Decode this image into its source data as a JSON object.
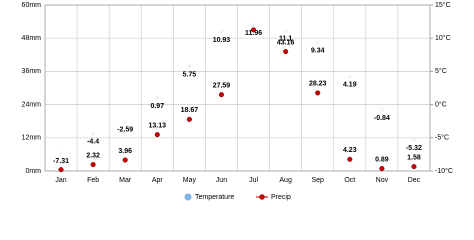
{
  "chart_data": {
    "type": "climate",
    "categories": [
      "Jan",
      "Feb",
      "Mar",
      "Apr",
      "May",
      "Jun",
      "Jul",
      "Aug",
      "Sep",
      "Oct",
      "Nov",
      "Dec"
    ],
    "series": [
      {
        "name": "Temperature",
        "color": "#7fb6e8",
        "axis": "y2",
        "values": [
          -7.31,
          -4.4,
          -2.59,
          0.97,
          5.75,
          10.93,
          11.96,
          11.1,
          9.34,
          4.19,
          -0.84,
          -5.32
        ]
      },
      {
        "name": "Precip",
        "color": "#cc0000",
        "values": [
          0.5,
          2.32,
          3.96,
          13.13,
          18.67,
          27.59,
          51,
          43.16,
          28.23,
          4.23,
          0.89,
          1.58
        ],
        "value_labels": [
          null,
          "2.32",
          "3.96",
          "13.13",
          "18.67",
          "27.59",
          null,
          "43.16",
          "28.23",
          "4.23",
          "0.89",
          "1.58"
        ]
      }
    ],
    "ylim": [
      0,
      60
    ],
    "yticks": [
      {
        "value": 0,
        "label": "0mm"
      },
      {
        "value": 12,
        "label": "12mm"
      },
      {
        "value": 24,
        "label": "24mm"
      },
      {
        "value": 36,
        "label": "36mm"
      },
      {
        "value": 48,
        "label": "48mm"
      },
      {
        "value": 60,
        "label": "60mm"
      }
    ],
    "y2lim": [
      -10,
      15
    ],
    "y2ticks": [
      {
        "value": -10,
        "label": "-10°C"
      },
      {
        "value": -5,
        "label": "-5°C"
      },
      {
        "value": 0,
        "label": "0°C"
      },
      {
        "value": 5,
        "label": "5°C"
      },
      {
        "value": 10,
        "label": "10°C"
      },
      {
        "value": 15,
        "label": "15°C"
      }
    ],
    "grid": true
  }
}
